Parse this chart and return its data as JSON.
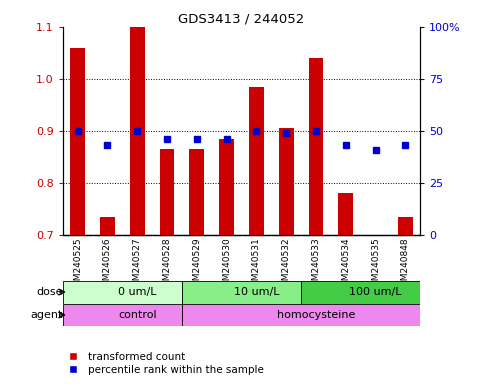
{
  "title": "GDS3413 / 244052",
  "samples": [
    "GSM240525",
    "GSM240526",
    "GSM240527",
    "GSM240528",
    "GSM240529",
    "GSM240530",
    "GSM240531",
    "GSM240532",
    "GSM240533",
    "GSM240534",
    "GSM240535",
    "GSM240848"
  ],
  "red_values": [
    1.06,
    0.735,
    1.1,
    0.865,
    0.865,
    0.885,
    0.985,
    0.905,
    1.04,
    0.78,
    0.7,
    0.735
  ],
  "blue_percentiles": [
    50,
    43,
    50,
    46,
    46,
    46,
    50,
    49,
    50,
    43,
    41,
    43
  ],
  "ylim_left": [
    0.7,
    1.1
  ],
  "ylim_right": [
    0,
    100
  ],
  "yticks_left": [
    0.7,
    0.8,
    0.9,
    1.0,
    1.1
  ],
  "yticks_right": [
    0,
    25,
    50,
    75,
    100
  ],
  "ytick_labels_right": [
    "0",
    "25",
    "50",
    "75",
    "100%"
  ],
  "red_color": "#cc0000",
  "blue_color": "#0000cc",
  "bar_bottom": 0.7,
  "dose_groups": [
    {
      "label": "0 um/L",
      "start": 0,
      "end": 4,
      "color": "#ccffcc"
    },
    {
      "label": "10 um/L",
      "start": 4,
      "end": 8,
      "color": "#88ee88"
    },
    {
      "label": "100 um/L",
      "start": 8,
      "end": 12,
      "color": "#44cc44"
    }
  ],
  "agent_groups": [
    {
      "label": "control",
      "start": 0,
      "end": 4,
      "color": "#ee88ee"
    },
    {
      "label": "homocysteine",
      "start": 4,
      "end": 12,
      "color": "#ee88ee"
    }
  ],
  "legend_red": "transformed count",
  "legend_blue": "percentile rank within the sample",
  "tick_area_color": "#cccccc",
  "grid_yticks": [
    0.8,
    0.9,
    1.0
  ]
}
